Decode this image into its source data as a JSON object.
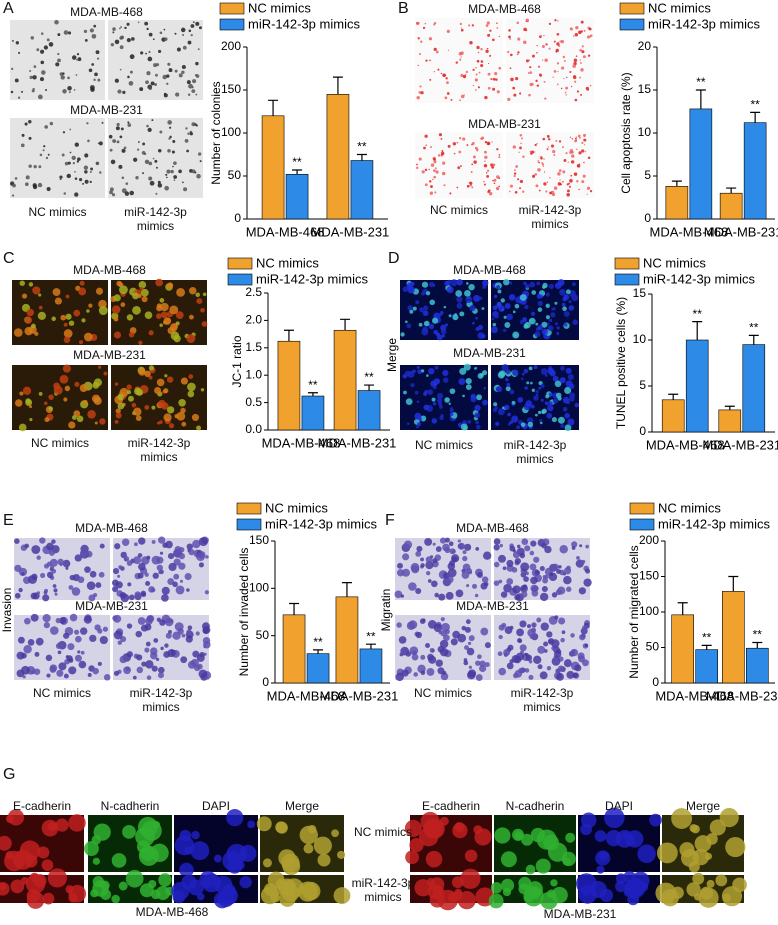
{
  "chart_data": [
    {
      "type": "bar",
      "ylabel": "Number of colonies",
      "categories": [
        "MDA-MB-468",
        "MDA-MB-231"
      ],
      "series": [
        {
          "name": "NC mimics",
          "color": "#f0a12e",
          "values": [
            120,
            145
          ],
          "errors": [
            18,
            20
          ]
        },
        {
          "name": "miR-142-3p mimics",
          "color": "#2d8ae6",
          "values": [
            52,
            68
          ],
          "errors": [
            5,
            7
          ],
          "annotations": [
            "**",
            "**"
          ]
        }
      ],
      "ylim": [
        0,
        200
      ],
      "yticks": [
        0,
        50,
        100,
        150,
        200
      ]
    },
    {
      "type": "bar",
      "ylabel": "Cell apoptosis rate (%)",
      "categories": [
        "MDA-MB-468",
        "MDA-MB-231"
      ],
      "series": [
        {
          "name": "NC mimics",
          "color": "#f0a12e",
          "values": [
            3.8,
            3.0
          ],
          "errors": [
            0.6,
            0.6
          ]
        },
        {
          "name": "miR-142-3p mimics",
          "color": "#2d8ae6",
          "values": [
            12.8,
            11.2
          ],
          "errors": [
            2.2,
            1.2
          ],
          "annotations": [
            "**",
            "**"
          ]
        }
      ],
      "ylim": [
        0,
        20
      ],
      "yticks": [
        0,
        5,
        10,
        15,
        20
      ]
    },
    {
      "type": "bar",
      "ylabel": "JC-1 ratio",
      "categories": [
        "MDA-MB-468",
        "MDA-MB-231"
      ],
      "series": [
        {
          "name": "NC mimics",
          "color": "#f0a12e",
          "values": [
            1.62,
            1.82
          ],
          "errors": [
            0.2,
            0.2
          ]
        },
        {
          "name": "miR-142-3p mimics",
          "color": "#2d8ae6",
          "values": [
            0.62,
            0.72
          ],
          "errors": [
            0.06,
            0.1
          ],
          "annotations": [
            "**",
            "**"
          ]
        }
      ],
      "ylim": [
        0,
        2.5
      ],
      "yticks": [
        {
          "value": 0,
          "label": "0.0"
        },
        0.5,
        {
          "value": 1,
          "label": "1.0"
        },
        1.5,
        {
          "value": 2,
          "label": "2.0"
        },
        2.5
      ]
    },
    {
      "type": "bar",
      "ylabel": "TUNEL positive cells (%)",
      "categories": [
        "MDA-MB-468",
        "MDA-MB-231"
      ],
      "series": [
        {
          "name": "NC mimics",
          "color": "#f0a12e",
          "values": [
            3.5,
            2.4
          ],
          "errors": [
            0.6,
            0.4
          ]
        },
        {
          "name": "miR-142-3p mimics",
          "color": "#2d8ae6",
          "values": [
            10,
            9.5
          ],
          "errors": [
            2,
            1
          ],
          "annotations": [
            "**",
            "**"
          ]
        }
      ],
      "ylim": [
        0,
        15
      ],
      "yticks": [
        0,
        5,
        10,
        15
      ]
    },
    {
      "type": "bar",
      "ylabel": "Number of invaded cells",
      "categories": [
        "MDA-MB-468",
        "MDA-MB-231"
      ],
      "series": [
        {
          "name": "NC mimics",
          "color": "#f0a12e",
          "values": [
            72,
            91
          ],
          "errors": [
            12,
            15
          ]
        },
        {
          "name": "miR-142-3p mimics",
          "color": "#2d8ae6",
          "values": [
            31,
            36
          ],
          "errors": [
            4,
            5
          ],
          "annotations": [
            "**",
            "**"
          ]
        }
      ],
      "ylim": [
        0,
        150
      ],
      "yticks": [
        0,
        50,
        100,
        150
      ]
    },
    {
      "type": "bar",
      "ylabel": "Number of migrated cells",
      "categories": [
        "MDA-MB-468",
        "MDA-MB-231"
      ],
      "series": [
        {
          "name": "NC mimics",
          "color": "#f0a12e",
          "values": [
            96,
            129
          ],
          "errors": [
            17,
            21
          ]
        },
        {
          "name": "miR-142-3p mimics",
          "color": "#2d8ae6",
          "values": [
            47,
            49
          ],
          "errors": [
            6,
            8
          ],
          "annotations": [
            "**",
            "**"
          ]
        }
      ],
      "ylim": [
        0,
        200
      ],
      "yticks": [
        0,
        50,
        100,
        150,
        200
      ]
    }
  ],
  "panels": [
    {
      "letter": "A",
      "top": "MDA-MB-468",
      "bottom": "MDA-MB-231",
      "columns": [
        "NC mimics",
        "miR-142-3p mimics"
      ]
    },
    {
      "letter": "B",
      "top": "MDA-MB-468",
      "bottom": "MDA-MB-231",
      "columns": [
        "NC mimics",
        "miR-142-3p mimics"
      ]
    },
    {
      "letter": "C",
      "top": "MDA-MB-468",
      "bottom": "MDA-MB-231",
      "columns": [
        "NC mimics",
        "miR-142-3p mimics"
      ]
    },
    {
      "letter": "D",
      "top": "MDA-MB-468",
      "bottom": "MDA-MB-231",
      "columns": [
        "NC mimics",
        "miR-142-3p mimics"
      ],
      "side": "Merge"
    },
    {
      "letter": "E",
      "top": "MDA-MB-468",
      "bottom": "MDA-MB-231",
      "columns": [
        "NC mimics",
        "miR-142-3p mimics"
      ],
      "side": "Invasion"
    },
    {
      "letter": "F",
      "top": "MDA-MB-468",
      "bottom": "MDA-MB-231",
      "columns": [
        "NC mimics",
        "miR-142-3p mimics"
      ],
      "side": "Migratin"
    }
  ],
  "panel_g": {
    "letter": "G",
    "left_channels": [
      "E-cadherin",
      "N-cadherin",
      "DAPI",
      "Merge"
    ],
    "right_channels": [
      "E-cadherin",
      "N-cadherin",
      "DAPI",
      "Merge"
    ],
    "rows": [
      "NC mimics",
      "miR-142-3p mimics"
    ],
    "left_line": "MDA-MB-468",
    "right_line": "MDA-MB-231"
  }
}
